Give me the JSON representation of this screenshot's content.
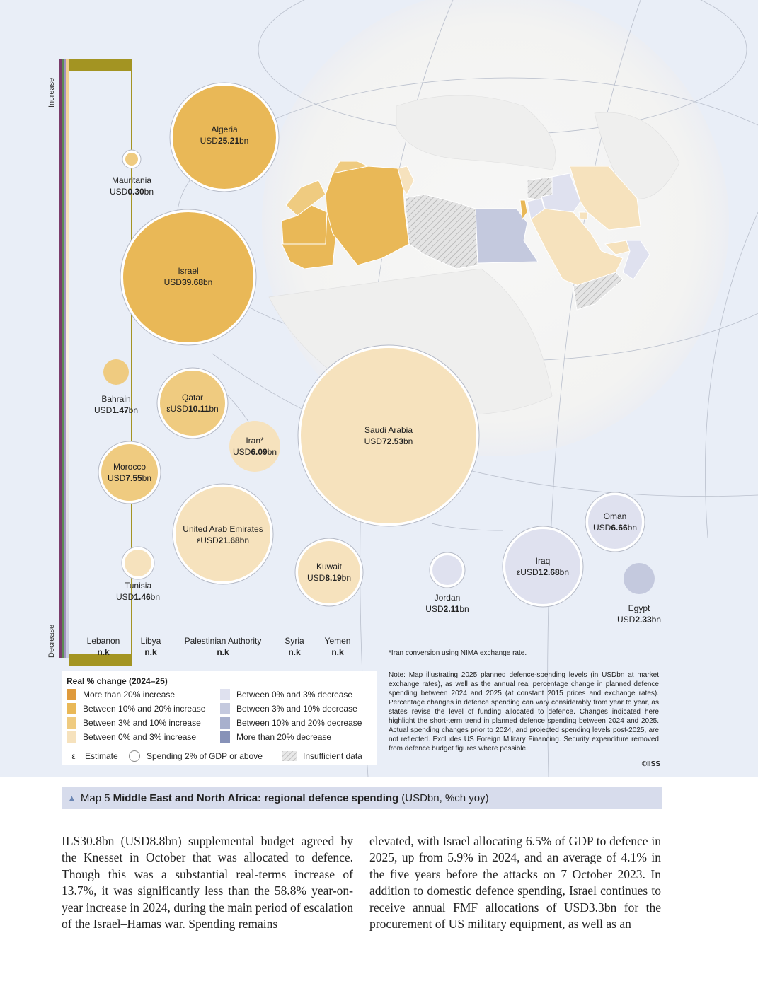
{
  "axis": {
    "top": "Increase",
    "bottom": "Decrease"
  },
  "colors": {
    "gt20_increase": "#df9a3c",
    "10to20_increase": "#e9b857",
    "3to10_increase": "#efcb80",
    "0to3_increase": "#f6e2bd",
    "0to3_decrease": "#dfe1ef",
    "3to10_decrease": "#c4c9de",
    "10to20_decrease": "#a8b0cd",
    "gt20_decrease": "#8792b8",
    "insufficient": "#d8d8d8",
    "globe": "#f5f5f4",
    "ocean": "#e9eef7",
    "bar_olive": "#a39422"
  },
  "bubbles": [
    {
      "name": "Algeria",
      "value_prefix": "USD",
      "value": "25.21",
      "unit": "bn",
      "category": "10to20_increase",
      "ring": true
    },
    {
      "name": "Mauritania",
      "value_prefix": "USD",
      "value": "0.30",
      "unit": "bn",
      "category": "3to10_increase",
      "ring": true
    },
    {
      "name": "Israel",
      "value_prefix": "USD",
      "value": "39.68",
      "unit": "bn",
      "category": "10to20_increase",
      "ring": true
    },
    {
      "name": "Bahrain",
      "value_prefix": "USD",
      "value": "1.47",
      "unit": "bn",
      "category": "3to10_increase",
      "ring": false
    },
    {
      "name": "Qatar",
      "value_prefix": "εUSD",
      "value": "10.11",
      "unit": "bn",
      "category": "3to10_increase",
      "ring": true
    },
    {
      "name": "Iran*",
      "value_prefix": "USD",
      "value": "6.09",
      "unit": "bn",
      "category": "0to3_increase",
      "ring": false
    },
    {
      "name": "Saudi Arabia",
      "value_prefix": "USD",
      "value": "72.53",
      "unit": "bn",
      "category": "0to3_increase",
      "ring": true
    },
    {
      "name": "Morocco",
      "value_prefix": "USD",
      "value": "7.55",
      "unit": "bn",
      "category": "3to10_increase",
      "ring": true
    },
    {
      "name": "United Arab Emirates",
      "value_prefix": "εUSD",
      "value": "21.68",
      "unit": "bn",
      "category": "0to3_increase",
      "ring": true
    },
    {
      "name": "Tunisia",
      "value_prefix": "USD",
      "value": "1.46",
      "unit": "bn",
      "category": "0to3_increase",
      "ring": true
    },
    {
      "name": "Kuwait",
      "value_prefix": "USD",
      "value": "8.19",
      "unit": "bn",
      "category": "0to3_increase",
      "ring": true
    },
    {
      "name": "Jordan",
      "value_prefix": "USD",
      "value": "2.11",
      "unit": "bn",
      "category": "0to3_decrease",
      "ring": true
    },
    {
      "name": "Iraq",
      "value_prefix": "εUSD",
      "value": "12.68",
      "unit": "bn",
      "category": "0to3_decrease",
      "ring": true
    },
    {
      "name": "Oman",
      "value_prefix": "USD",
      "value": "6.66",
      "unit": "bn",
      "category": "0to3_decrease",
      "ring": true
    },
    {
      "name": "Egypt",
      "value_prefix": "USD",
      "value": "2.33",
      "unit": "bn",
      "category": "3to10_decrease",
      "ring": false
    }
  ],
  "no_data": [
    {
      "name": "Lebanon",
      "value": "n.k"
    },
    {
      "name": "Libya",
      "value": "n.k"
    },
    {
      "name": "Palestinian Authority",
      "value": "n.k"
    },
    {
      "name": "Syria",
      "value": "n.k"
    },
    {
      "name": "Yemen",
      "value": "n.k"
    }
  ],
  "iran_note": "*Iran conversion using NIMA exchange rate.",
  "legend": {
    "title": "Real % change (2024–25)",
    "items": [
      {
        "label": "More than 20% increase",
        "color": "#df9a3c"
      },
      {
        "label": "Between 10% and 20% increase",
        "color": "#e9b857"
      },
      {
        "label": "Between 3% and 10% increase",
        "color": "#efcb80"
      },
      {
        "label": "Between 0% and 3% increase",
        "color": "#f6e2bd"
      },
      {
        "label": "Between 0% and 3% decrease",
        "color": "#dfe1ef"
      },
      {
        "label": "Between 3% and 10% decrease",
        "color": "#c4c9de"
      },
      {
        "label": "Between 10% and 20% decrease",
        "color": "#a8b0cd"
      },
      {
        "label": "More than 20% decrease",
        "color": "#8792b8"
      }
    ],
    "estimate_symbol": "ε",
    "estimate_label": "Estimate",
    "gdp_label": "Spending 2% of GDP or above",
    "insufficient_label": "Insufficient data"
  },
  "note": "Note: Map illustrating 2025 planned defence-spending levels (in USDbn at market exchange rates), as well as the annual real percentage change in planned defence spending between 2024 and 2025 (at constant 2015 prices and exchange rates). Percentage changes in defence spending can vary considerably from year to year, as states revise the level of funding allocated to defence. Changes indicated here highlight the short-term trend in planned defence spending between 2024 and 2025. Actual spending changes prior to 2024, and projected spending levels post-2025, are not reflected. Excludes US Foreign Military Financing. Security expenditure removed from defence budget figures where possible.",
  "copyright": "©IISS",
  "caption": {
    "prefix": "Map 5",
    "title": "Middle East and North Africa: regional defence spending",
    "suffix": "(USDbn, %ch yoy)"
  },
  "body_text": {
    "left": "ILS30.8bn (USD8.8bn) supplemental budget agreed by the Knesset in October that was allocated to defence. Though this was a substantial real-terms increase of 13.7%, it was significantly less than the 58.8% year-on-year increase in 2024, during the main period of escalation of the Israel–Hamas war. Spending remains",
    "right": "elevated, with Israel allocating 6.5% of GDP to defence in 2025, up from 5.9% in 2024, and an average of 4.1% in the five years before the attacks on 7 October 2023. In addition to domestic defence spending, Israel continues to receive annual FMF allocations of USD3.3bn for the procurement of US military equipment, as well as an"
  }
}
